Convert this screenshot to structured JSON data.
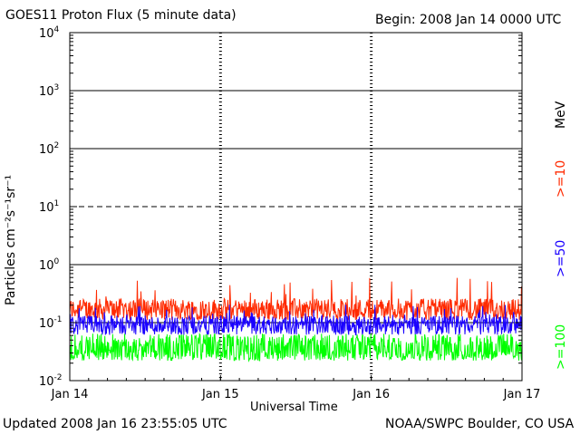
{
  "header": {
    "title": "GOES11 Proton Flux (5 minute data)",
    "begin": "Begin: 2008 Jan 14 0000 UTC"
  },
  "footer": {
    "updated": "Updated 2008 Jan 16 23:55:05 UTC",
    "credit": "NOAA/SWPC Boulder, CO USA"
  },
  "chart_data": {
    "type": "line",
    "title": "GOES11 Proton Flux (5 minute data)",
    "xlabel": "Universal Time",
    "ylabel": "Particles cm⁻²s⁻¹sr⁻¹",
    "yscale": "log",
    "ylim": [
      0.01,
      10000
    ],
    "x_ticks": [
      "Jan 14",
      "Jan 15",
      "Jan 16",
      "Jan 17"
    ],
    "y_ticks": [
      {
        "base": "10",
        "exp": "4"
      },
      {
        "base": "10",
        "exp": "3"
      },
      {
        "base": "10",
        "exp": "2"
      },
      {
        "base": "10",
        "exp": "1"
      },
      {
        "base": "10",
        "exp": "0"
      },
      {
        "base": "10",
        "exp": "-1"
      },
      {
        "base": "10",
        "exp": "-2"
      }
    ],
    "unit_label": "MeV",
    "series": [
      {
        "name": ">=10",
        "color": "#ff2a00",
        "typical_level": 0.17,
        "range": [
          0.09,
          0.6
        ]
      },
      {
        "name": ">=50",
        "color": "#1a00ff",
        "typical_level": 0.09,
        "range": [
          0.04,
          0.22
        ]
      },
      {
        "name": ">=100",
        "color": "#00ff00",
        "typical_level": 0.045,
        "range": [
          0.022,
          0.08
        ]
      }
    ]
  }
}
